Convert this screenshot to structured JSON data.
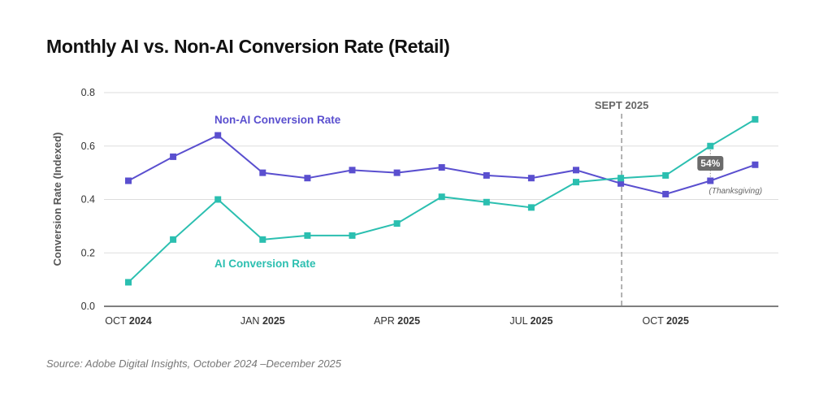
{
  "chart_data": {
    "type": "line",
    "title": "Monthly AI vs. Non-AI Conversion Rate (Retail)",
    "ylabel": "Conversion Rate (Indexed)",
    "xlabel": "",
    "ylim": [
      0,
      0.8
    ],
    "yticks": [
      "0.0",
      "0.2",
      "0.4",
      "0.6",
      "0.8"
    ],
    "grid": true,
    "x": [
      "Oct 2024",
      "Nov 2024",
      "Dec 2024",
      "Jan 2025",
      "Feb 2025",
      "Mar 2025",
      "Apr 2025",
      "May 2025",
      "Jun 2025",
      "Jul 2025",
      "Aug 2025",
      "Sep 2025",
      "Oct 2025",
      "Nov 2025",
      "Dec 2025"
    ],
    "xticks": [
      {
        "month": "OCT",
        "year": "2024",
        "index": 0
      },
      {
        "month": "JAN",
        "year": "2025",
        "index": 3
      },
      {
        "month": "APR",
        "year": "2025",
        "index": 6
      },
      {
        "month": "JUL",
        "year": "2025",
        "index": 9
      },
      {
        "month": "OCT",
        "year": "2025",
        "index": 12
      }
    ],
    "series": [
      {
        "name": "Non-AI Conversion Rate",
        "color": "#5a4fcf",
        "values": [
          0.47,
          0.56,
          0.64,
          0.5,
          0.48,
          0.51,
          0.5,
          0.52,
          0.49,
          0.48,
          0.51,
          0.46,
          0.42,
          0.47,
          0.53
        ]
      },
      {
        "name": "AI Conversion Rate",
        "color": "#2bbfb0",
        "values": [
          0.09,
          0.25,
          0.4,
          0.25,
          0.265,
          0.265,
          0.31,
          0.41,
          0.39,
          0.37,
          0.465,
          0.48,
          0.49,
          0.6,
          0.7
        ]
      }
    ],
    "annotations": {
      "vline_label": "SEPT 2025",
      "vline_index": 11,
      "badge": "54%",
      "badge_index": 13,
      "badge_note": "(Thanksgiving)"
    }
  },
  "source": "Source: Adobe Digital Insights, October 2024 –December 2025"
}
